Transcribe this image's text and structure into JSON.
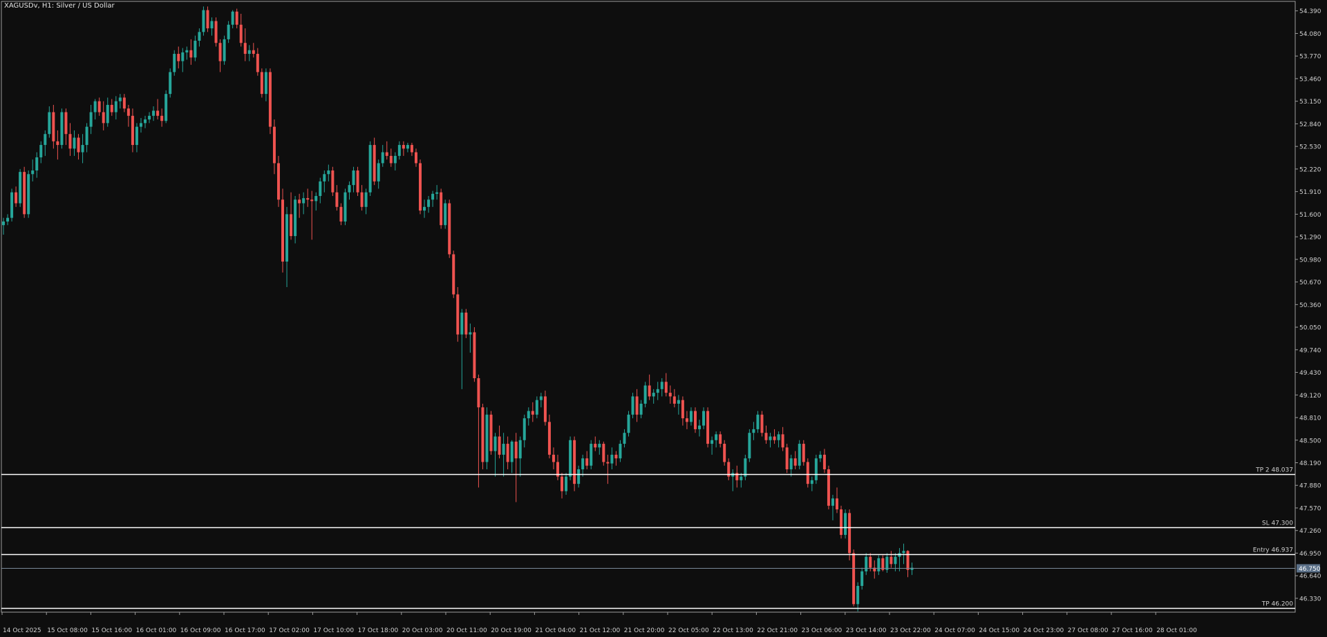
{
  "window": {
    "title": "XAGUSDv, H1:  Silver / US Dollar"
  },
  "colors": {
    "background": "#0e0e0e",
    "bull": "#26a69a",
    "bear": "#ef5350",
    "axis": "#9e9e9e",
    "text": "#d0d0d0",
    "level_line": "#ffffff",
    "current_price_line": "#7a8a9a",
    "current_price_tag": "#5b7088"
  },
  "chart_data": {
    "type": "candlestick",
    "symbol": "XAGUSDv",
    "timeframe": "H1",
    "description": "Silver / US Dollar",
    "ylim": [
      46.14,
      54.52
    ],
    "y_ticks": [
      "54.390",
      "54.080",
      "53.770",
      "53.460",
      "53.150",
      "52.840",
      "52.530",
      "52.220",
      "51.910",
      "51.600",
      "51.290",
      "50.980",
      "50.670",
      "50.360",
      "50.050",
      "49.740",
      "49.430",
      "49.120",
      "48.810",
      "48.500",
      "48.190",
      "47.880",
      "47.570",
      "47.260",
      "46.950",
      "46.640",
      "46.330"
    ],
    "x_labels": [
      "14 Oct 2025",
      "15 Oct 08:00",
      "15 Oct 16:00",
      "16 Oct 01:00",
      "16 Oct 09:00",
      "16 Oct 17:00",
      "17 Oct 02:00",
      "17 Oct 10:00",
      "17 Oct 18:00",
      "20 Oct 03:00",
      "20 Oct 11:00",
      "20 Oct 19:00",
      "21 Oct 04:00",
      "21 Oct 12:00",
      "21 Oct 20:00",
      "22 Oct 05:00",
      "22 Oct 13:00",
      "22 Oct 21:00",
      "23 Oct 06:00",
      "23 Oct 14:00",
      "23 Oct 22:00",
      "24 Oct 07:00",
      "24 Oct 15:00",
      "24 Oct 23:00",
      "27 Oct 08:00",
      "27 Oct 16:00",
      "28 Oct 01:00"
    ],
    "current_price": "46.750",
    "levels": [
      {
        "label": "TP 2 48.037",
        "price": 48.037
      },
      {
        "label": "SL 47.300",
        "price": 47.3
      },
      {
        "label": "Entry 46.937",
        "price": 46.937
      },
      {
        "label": "TP 46.200",
        "price": 46.2
      }
    ],
    "candles": [
      [
        51.45,
        51.55,
        51.32,
        51.5
      ],
      [
        51.5,
        51.6,
        51.45,
        51.55
      ],
      [
        51.55,
        51.95,
        51.5,
        51.9
      ],
      [
        51.9,
        51.98,
        51.7,
        51.75
      ],
      [
        51.75,
        52.22,
        51.7,
        52.18
      ],
      [
        52.18,
        52.25,
        51.55,
        51.6
      ],
      [
        51.6,
        52.2,
        51.55,
        52.15
      ],
      [
        52.15,
        52.35,
        52.05,
        52.2
      ],
      [
        52.2,
        52.45,
        52.1,
        52.38
      ],
      [
        52.38,
        52.6,
        52.3,
        52.55
      ],
      [
        52.55,
        52.75,
        52.4,
        52.7
      ],
      [
        52.7,
        53.08,
        52.65,
        53.0
      ],
      [
        53.0,
        53.1,
        52.5,
        52.6
      ],
      [
        52.6,
        52.75,
        52.35,
        52.55
      ],
      [
        52.55,
        53.05,
        52.5,
        53.0
      ],
      [
        53.0,
        53.05,
        52.55,
        52.7
      ],
      [
        52.7,
        52.85,
        52.4,
        52.5
      ],
      [
        52.5,
        52.75,
        52.4,
        52.65
      ],
      [
        52.65,
        52.7,
        52.35,
        52.45
      ],
      [
        52.45,
        52.7,
        52.3,
        52.55
      ],
      [
        52.55,
        52.85,
        52.45,
        52.8
      ],
      [
        52.8,
        53.1,
        52.7,
        53.0
      ],
      [
        53.0,
        53.18,
        52.9,
        53.15
      ],
      [
        53.15,
        53.2,
        52.95,
        53.0
      ],
      [
        53.0,
        53.15,
        52.75,
        52.85
      ],
      [
        52.85,
        53.2,
        52.8,
        53.1
      ],
      [
        53.1,
        53.18,
        52.95,
        53.0
      ],
      [
        53.0,
        53.22,
        52.9,
        53.15
      ],
      [
        53.15,
        53.25,
        53.05,
        53.2
      ],
      [
        53.2,
        53.25,
        53.0,
        53.05
      ],
      [
        53.05,
        53.1,
        52.8,
        52.95
      ],
      [
        52.95,
        53.05,
        52.45,
        52.55
      ],
      [
        52.55,
        52.85,
        52.45,
        52.8
      ],
      [
        52.8,
        52.92,
        52.72,
        52.85
      ],
      [
        52.85,
        52.95,
        52.78,
        52.9
      ],
      [
        52.9,
        53.0,
        52.85,
        52.95
      ],
      [
        52.95,
        53.08,
        52.88,
        53.02
      ],
      [
        53.02,
        53.18,
        52.9,
        52.95
      ],
      [
        52.95,
        53.05,
        52.8,
        52.88
      ],
      [
        52.88,
        53.3,
        52.85,
        53.25
      ],
      [
        53.25,
        53.6,
        53.2,
        53.55
      ],
      [
        53.55,
        53.85,
        53.5,
        53.8
      ],
      [
        53.8,
        53.9,
        53.6,
        53.7
      ],
      [
        53.7,
        53.88,
        53.55,
        53.82
      ],
      [
        53.82,
        53.9,
        53.72,
        53.85
      ],
      [
        53.85,
        54.0,
        53.65,
        53.75
      ],
      [
        53.75,
        54.05,
        53.7,
        53.98
      ],
      [
        53.98,
        54.15,
        53.9,
        54.1
      ],
      [
        54.1,
        54.45,
        54.05,
        54.4
      ],
      [
        54.4,
        54.45,
        54.1,
        54.15
      ],
      [
        54.15,
        54.3,
        54.05,
        54.25
      ],
      [
        54.25,
        54.3,
        53.9,
        53.95
      ],
      [
        53.95,
        54.0,
        53.55,
        53.7
      ],
      [
        53.7,
        54.05,
        53.65,
        54.0
      ],
      [
        54.0,
        54.25,
        53.95,
        54.2
      ],
      [
        54.2,
        54.4,
        54.15,
        54.38
      ],
      [
        54.38,
        54.42,
        54.15,
        54.2
      ],
      [
        54.2,
        54.35,
        53.9,
        53.95
      ],
      [
        53.95,
        54.15,
        53.7,
        53.8
      ],
      [
        53.8,
        53.92,
        53.7,
        53.85
      ],
      [
        53.85,
        53.95,
        53.75,
        53.8
      ],
      [
        53.8,
        53.88,
        53.5,
        53.55
      ],
      [
        53.55,
        53.6,
        53.2,
        53.25
      ],
      [
        53.25,
        53.6,
        53.15,
        53.55
      ],
      [
        53.55,
        53.6,
        52.7,
        52.8
      ],
      [
        52.8,
        52.9,
        52.15,
        52.3
      ],
      [
        52.3,
        52.4,
        51.7,
        51.8
      ],
      [
        51.8,
        51.95,
        50.8,
        50.95
      ],
      [
        50.95,
        51.7,
        50.6,
        51.6
      ],
      [
        51.6,
        51.9,
        51.25,
        51.3
      ],
      [
        51.3,
        51.85,
        51.2,
        51.8
      ],
      [
        51.8,
        51.88,
        51.55,
        51.75
      ],
      [
        51.75,
        51.9,
        51.6,
        51.82
      ],
      [
        51.82,
        51.95,
        51.7,
        51.8
      ],
      [
        51.8,
        51.92,
        51.25,
        51.78
      ],
      [
        51.78,
        51.9,
        51.65,
        51.85
      ],
      [
        51.85,
        52.1,
        51.75,
        52.05
      ],
      [
        52.05,
        52.2,
        51.9,
        52.15
      ],
      [
        52.15,
        52.28,
        52.05,
        52.2
      ],
      [
        52.2,
        52.25,
        51.85,
        51.9
      ],
      [
        51.9,
        52.0,
        51.65,
        51.7
      ],
      [
        51.7,
        51.75,
        51.45,
        51.5
      ],
      [
        51.5,
        51.95,
        51.45,
        51.9
      ],
      [
        51.9,
        52.05,
        51.8,
        52.0
      ],
      [
        52.0,
        52.25,
        51.9,
        52.2
      ],
      [
        52.2,
        52.25,
        51.85,
        51.9
      ],
      [
        51.9,
        52.0,
        51.65,
        51.7
      ],
      [
        51.7,
        51.95,
        51.6,
        51.9
      ],
      [
        51.9,
        52.6,
        51.85,
        52.55
      ],
      [
        52.55,
        52.65,
        52.0,
        52.05
      ],
      [
        52.05,
        52.35,
        51.95,
        52.3
      ],
      [
        52.3,
        52.55,
        52.25,
        52.45
      ],
      [
        52.45,
        52.6,
        52.35,
        52.4
      ],
      [
        52.4,
        52.5,
        52.25,
        52.3
      ],
      [
        52.3,
        52.45,
        52.2,
        52.4
      ],
      [
        52.4,
        52.6,
        52.35,
        52.55
      ],
      [
        52.55,
        52.6,
        52.4,
        52.5
      ],
      [
        52.5,
        52.58,
        52.45,
        52.55
      ],
      [
        52.55,
        52.58,
        52.4,
        52.45
      ],
      [
        52.45,
        52.5,
        52.25,
        52.3
      ],
      [
        52.3,
        52.35,
        51.6,
        51.65
      ],
      [
        51.65,
        51.8,
        51.55,
        51.7
      ],
      [
        51.7,
        51.85,
        51.62,
        51.8
      ],
      [
        51.8,
        51.92,
        51.7,
        51.88
      ],
      [
        51.88,
        52.0,
        51.8,
        51.9
      ],
      [
        51.9,
        51.95,
        51.4,
        51.45
      ],
      [
        51.45,
        51.8,
        51.4,
        51.75
      ],
      [
        51.75,
        51.8,
        51.0,
        51.05
      ],
      [
        51.05,
        51.1,
        50.45,
        50.5
      ],
      [
        50.5,
        50.6,
        49.85,
        49.95
      ],
      [
        49.95,
        50.3,
        49.2,
        50.25
      ],
      [
        50.25,
        50.3,
        49.9,
        49.95
      ],
      [
        49.95,
        50.1,
        49.7,
        49.98
      ],
      [
        49.98,
        50.05,
        49.3,
        49.35
      ],
      [
        49.35,
        49.4,
        47.85,
        48.95
      ],
      [
        48.95,
        49.0,
        48.1,
        48.2
      ],
      [
        48.2,
        48.95,
        48.1,
        48.85
      ],
      [
        48.85,
        48.9,
        48.3,
        48.35
      ],
      [
        48.35,
        48.6,
        48.0,
        48.55
      ],
      [
        48.55,
        48.7,
        48.25,
        48.3
      ],
      [
        48.3,
        48.6,
        48.0,
        48.45
      ],
      [
        48.45,
        48.55,
        48.1,
        48.2
      ],
      [
        48.2,
        48.5,
        48.05,
        48.48
      ],
      [
        48.48,
        48.6,
        47.65,
        48.25
      ],
      [
        48.25,
        48.55,
        48.0,
        48.5
      ],
      [
        48.5,
        48.85,
        48.4,
        48.8
      ],
      [
        48.8,
        48.95,
        48.7,
        48.9
      ],
      [
        48.9,
        49.02,
        48.75,
        48.85
      ],
      [
        48.85,
        49.1,
        48.8,
        49.05
      ],
      [
        49.05,
        49.15,
        48.95,
        49.1
      ],
      [
        49.1,
        49.18,
        48.7,
        48.75
      ],
      [
        48.75,
        48.85,
        48.25,
        48.3
      ],
      [
        48.3,
        48.4,
        48.1,
        48.2
      ],
      [
        48.2,
        48.3,
        47.95,
        48.0
      ],
      [
        48.0,
        48.05,
        47.7,
        47.8
      ],
      [
        47.8,
        48.05,
        47.75,
        48.0
      ],
      [
        48.0,
        48.55,
        47.95,
        48.5
      ],
      [
        48.5,
        48.55,
        47.8,
        47.9
      ],
      [
        47.9,
        48.15,
        47.85,
        48.1
      ],
      [
        48.1,
        48.3,
        48.0,
        48.25
      ],
      [
        48.25,
        48.35,
        48.1,
        48.15
      ],
      [
        48.15,
        48.5,
        48.1,
        48.45
      ],
      [
        48.45,
        48.55,
        48.35,
        48.4
      ],
      [
        48.4,
        48.5,
        48.3,
        48.45
      ],
      [
        48.45,
        48.48,
        48.15,
        48.2
      ],
      [
        48.2,
        48.3,
        47.9,
        48.18
      ],
      [
        48.18,
        48.4,
        48.1,
        48.3
      ],
      [
        48.3,
        48.35,
        48.15,
        48.25
      ],
      [
        48.25,
        48.5,
        48.2,
        48.45
      ],
      [
        48.45,
        48.65,
        48.4,
        48.6
      ],
      [
        48.6,
        48.9,
        48.55,
        48.85
      ],
      [
        48.85,
        49.15,
        48.8,
        49.1
      ],
      [
        49.1,
        49.2,
        48.75,
        48.85
      ],
      [
        48.85,
        49.05,
        48.8,
        49.0
      ],
      [
        49.0,
        49.3,
        48.95,
        49.25
      ],
      [
        49.25,
        49.4,
        49.05,
        49.1
      ],
      [
        49.1,
        49.2,
        49.0,
        49.15
      ],
      [
        49.15,
        49.3,
        49.05,
        49.2
      ],
      [
        49.2,
        49.35,
        49.1,
        49.3
      ],
      [
        49.3,
        49.42,
        49.1,
        49.15
      ],
      [
        49.15,
        49.25,
        49.0,
        49.1
      ],
      [
        49.1,
        49.2,
        48.95,
        49.0
      ],
      [
        49.0,
        49.12,
        48.85,
        49.05
      ],
      [
        49.05,
        49.1,
        48.7,
        48.8
      ],
      [
        48.8,
        48.9,
        48.65,
        48.75
      ],
      [
        48.75,
        48.95,
        48.7,
        48.9
      ],
      [
        48.9,
        48.95,
        48.6,
        48.65
      ],
      [
        48.65,
        48.78,
        48.55,
        48.7
      ],
      [
        48.7,
        48.95,
        48.65,
        48.9
      ],
      [
        48.9,
        48.95,
        48.4,
        48.45
      ],
      [
        48.45,
        48.55,
        48.3,
        48.5
      ],
      [
        48.5,
        48.62,
        48.4,
        48.58
      ],
      [
        48.58,
        48.62,
        48.4,
        48.45
      ],
      [
        48.45,
        48.5,
        48.15,
        48.2
      ],
      [
        48.2,
        48.25,
        47.95,
        48.0
      ],
      [
        48.0,
        48.1,
        47.8,
        48.05
      ],
      [
        48.05,
        48.15,
        47.85,
        47.95
      ],
      [
        47.95,
        48.05,
        47.85,
        48.0
      ],
      [
        48.0,
        48.3,
        47.95,
        48.25
      ],
      [
        48.25,
        48.65,
        48.2,
        48.6
      ],
      [
        48.6,
        48.75,
        48.5,
        48.65
      ],
      [
        48.65,
        48.9,
        48.6,
        48.85
      ],
      [
        48.85,
        48.9,
        48.55,
        48.6
      ],
      [
        48.6,
        48.7,
        48.45,
        48.5
      ],
      [
        48.5,
        48.6,
        48.4,
        48.55
      ],
      [
        48.55,
        48.65,
        48.45,
        48.5
      ],
      [
        48.5,
        48.62,
        48.4,
        48.58
      ],
      [
        48.58,
        48.68,
        48.35,
        48.4
      ],
      [
        48.4,
        48.45,
        48.05,
        48.1
      ],
      [
        48.1,
        48.3,
        48.0,
        48.25
      ],
      [
        48.25,
        48.35,
        48.1,
        48.15
      ],
      [
        48.15,
        48.5,
        48.1,
        48.45
      ],
      [
        48.45,
        48.5,
        48.15,
        48.2
      ],
      [
        48.2,
        48.25,
        47.85,
        47.9
      ],
      [
        47.9,
        48.0,
        47.8,
        47.95
      ],
      [
        47.95,
        48.3,
        47.9,
        48.25
      ],
      [
        48.25,
        48.35,
        48.2,
        48.3
      ],
      [
        48.3,
        48.38,
        48.05,
        48.1
      ],
      [
        48.1,
        48.15,
        47.55,
        47.6
      ],
      [
        47.6,
        47.75,
        47.4,
        47.7
      ],
      [
        47.7,
        47.85,
        47.5,
        47.55
      ],
      [
        47.55,
        47.6,
        47.15,
        47.2
      ],
      [
        47.2,
        47.55,
        47.15,
        47.5
      ],
      [
        47.5,
        47.55,
        46.85,
        46.95
      ],
      [
        46.95,
        47.0,
        46.22,
        46.25
      ],
      [
        46.25,
        46.55,
        46.15,
        46.5
      ],
      [
        46.5,
        46.75,
        46.45,
        46.7
      ],
      [
        46.7,
        46.95,
        46.65,
        46.9
      ],
      [
        46.9,
        46.95,
        46.7,
        46.75
      ],
      [
        46.75,
        46.85,
        46.6,
        46.7
      ],
      [
        46.7,
        46.92,
        46.65,
        46.88
      ],
      [
        46.88,
        46.92,
        46.7,
        46.72
      ],
      [
        46.72,
        46.95,
        46.68,
        46.9
      ],
      [
        46.9,
        46.98,
        46.75,
        46.8
      ],
      [
        46.8,
        46.95,
        46.7,
        46.9
      ],
      [
        46.9,
        47.02,
        46.7,
        46.95
      ],
      [
        46.95,
        47.08,
        46.8,
        46.98
      ],
      [
        46.98,
        46.99,
        46.62,
        46.72
      ],
      [
        46.72,
        46.82,
        46.65,
        46.75
      ]
    ]
  }
}
